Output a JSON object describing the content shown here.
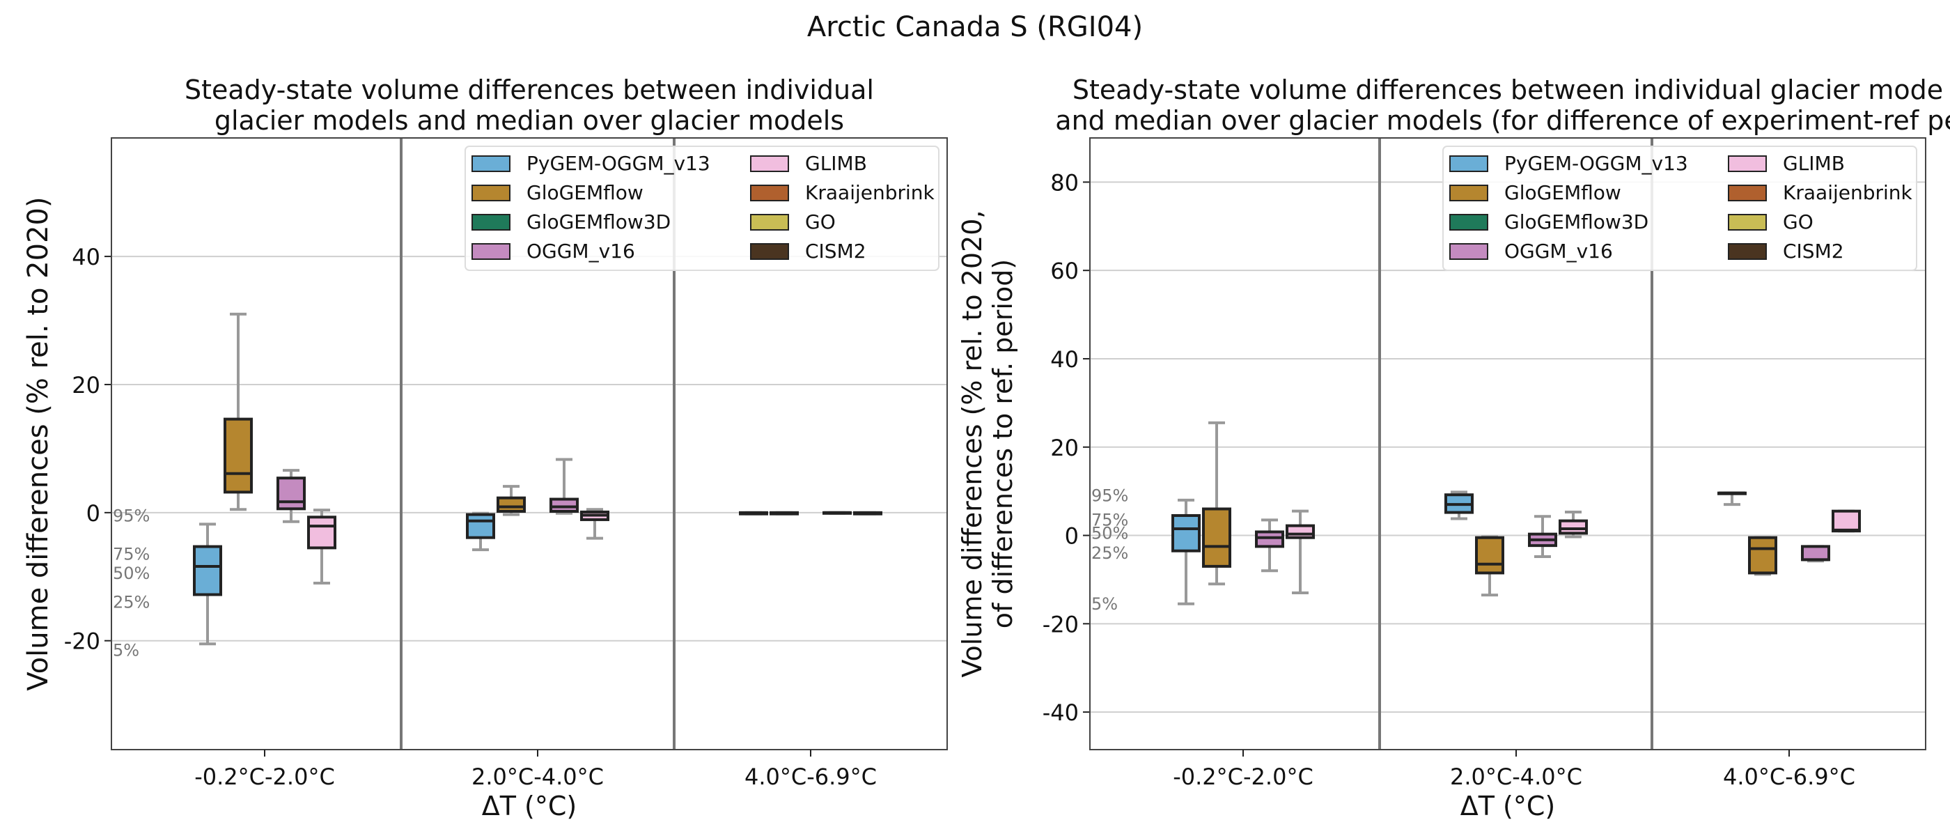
{
  "suptitle": "Arctic Canada S (RGI04)",
  "legend": [
    {
      "name": "PyGEM-OGGM_v13",
      "color": "#6aaed6"
    },
    {
      "name": "GloGEMflow",
      "color": "#b5862f"
    },
    {
      "name": "GloGEMflow3D",
      "color": "#1f7a5a"
    },
    {
      "name": "OGGM_v16",
      "color": "#c48bc0"
    },
    {
      "name": "GLIMB",
      "color": "#f1bedf"
    },
    {
      "name": "Kraaijenbrink",
      "color": "#b0602e"
    },
    {
      "name": "GO",
      "color": "#c9bd55"
    },
    {
      "name": "CISM2",
      "color": "#4a3420"
    }
  ],
  "chart_data": [
    {
      "type": "box",
      "title_line1": "Steady-state volume differences between individual",
      "title_line2": "glacier models and median over glacier models",
      "xlabel": "ΔT (°C)",
      "ylabel_line1": "Volume differences (% rel. to 2020)",
      "ylabel_line2": "",
      "ylim": [
        -37,
        58.5
      ],
      "yticks": [
        -20,
        0,
        20,
        40
      ],
      "grid": true,
      "legend_position": "top-right",
      "categories": [
        "-0.2°C-2.0°C",
        "2.0°C-4.0°C",
        "4.0°C-6.9°C"
      ],
      "percentile_labels": [
        {
          "text": "95%",
          "y": -0.5
        },
        {
          "text": "75%",
          "y": -6.5
        },
        {
          "text": "50%",
          "y": -9.5
        },
        {
          "text": "25%",
          "y": -14
        },
        {
          "text": "5%",
          "y": -21.5
        }
      ],
      "boxes": [
        {
          "group": 0,
          "model": "PyGEM-OGGM_v13",
          "p5": -20.5,
          "q1": -12.8,
          "median": -8.4,
          "q3": -5.3,
          "p95": -1.8
        },
        {
          "group": 0,
          "model": "GloGEMflow",
          "p5": 0.5,
          "q1": 3.2,
          "median": 6.1,
          "q3": 14.6,
          "p95": 31.0
        },
        {
          "group": 0,
          "model": "OGGM_v16",
          "p5": -1.4,
          "q1": 0.6,
          "median": 1.7,
          "q3": 5.4,
          "p95": 6.6
        },
        {
          "group": 0,
          "model": "GLIMB",
          "p5": -11.0,
          "q1": -5.5,
          "median": -2.1,
          "q3": -0.7,
          "p95": 0.4
        },
        {
          "group": 1,
          "model": "PyGEM-OGGM_v13",
          "p5": -5.8,
          "q1": -3.9,
          "median": -1.3,
          "q3": -0.3,
          "p95": -0.1
        },
        {
          "group": 1,
          "model": "GloGEMflow",
          "p5": -0.3,
          "q1": 0.2,
          "median": 0.9,
          "q3": 2.3,
          "p95": 4.1
        },
        {
          "group": 1,
          "model": "OGGM_v16",
          "p5": -0.1,
          "q1": 0.2,
          "median": 0.9,
          "q3": 2.1,
          "p95": 8.3
        },
        {
          "group": 1,
          "model": "GLIMB",
          "p5": -4.0,
          "q1": -1.1,
          "median": -0.4,
          "q3": 0.1,
          "p95": 0.5
        },
        {
          "group": 2,
          "model": "PyGEM-OGGM_v13",
          "p5": -0.2,
          "q1": -0.2,
          "median": -0.1,
          "q3": 0.0,
          "p95": 0.0
        },
        {
          "group": 2,
          "model": "GloGEMflow",
          "p5": -0.2,
          "q1": -0.2,
          "median": -0.1,
          "q3": 0.0,
          "p95": 0.0
        },
        {
          "group": 2,
          "model": "OGGM_v16",
          "p5": -0.1,
          "q1": -0.1,
          "median": 0.0,
          "q3": 0.0,
          "p95": 0.0
        },
        {
          "group": 2,
          "model": "GLIMB",
          "p5": -0.2,
          "q1": -0.2,
          "median": -0.1,
          "q3": 0.0,
          "p95": 0.0
        }
      ]
    },
    {
      "type": "box",
      "title_line1": "Steady-state volume differences between individual glacier mode",
      "title_line2": "and median over glacier models (for difference of experiment-ref pe",
      "xlabel": "ΔT (°C)",
      "ylabel_line1": "Volume differences (% rel. to 2020,",
      "ylabel_line2": "of differences to ref. period)",
      "ylim": [
        -48.5,
        90
      ],
      "yticks": [
        -40,
        -20,
        0,
        20,
        40,
        60,
        80
      ],
      "grid": true,
      "legend_position": "top-right",
      "categories": [
        "-0.2°C-2.0°C",
        "2.0°C-4.0°C",
        "4.0°C-6.9°C"
      ],
      "percentile_labels": [
        {
          "text": "95%",
          "y": 9
        },
        {
          "text": "75%",
          "y": 3.5
        },
        {
          "text": "50%",
          "y": 0.5
        },
        {
          "text": "25%",
          "y": -4
        },
        {
          "text": "5%",
          "y": -15.5
        }
      ],
      "boxes": [
        {
          "group": 0,
          "model": "PyGEM-OGGM_v13",
          "p5": -15.5,
          "q1": -3.5,
          "median": 1.5,
          "q3": 4.5,
          "p95": 8.0
        },
        {
          "group": 0,
          "model": "GloGEMflow",
          "p5": -11.0,
          "q1": -7.0,
          "median": -2.5,
          "q3": 6.0,
          "p95": 25.5
        },
        {
          "group": 0,
          "model": "OGGM_v16",
          "p5": -8.0,
          "q1": -2.5,
          "median": -0.5,
          "q3": 0.8,
          "p95": 3.5
        },
        {
          "group": 0,
          "model": "GLIMB",
          "p5": -13.0,
          "q1": -0.5,
          "median": 0.3,
          "q3": 2.2,
          "p95": 5.5
        },
        {
          "group": 1,
          "model": "PyGEM-OGGM_v13",
          "p5": 3.8,
          "q1": 5.2,
          "median": 7.0,
          "q3": 9.2,
          "p95": 9.8
        },
        {
          "group": 1,
          "model": "GloGEMflow",
          "p5": -13.5,
          "q1": -8.5,
          "median": -6.5,
          "q3": -0.5,
          "p95": -0.3
        },
        {
          "group": 1,
          "model": "OGGM_v16",
          "p5": -4.8,
          "q1": -2.3,
          "median": -1.0,
          "q3": 0.3,
          "p95": 4.3
        },
        {
          "group": 1,
          "model": "GLIMB",
          "p5": -0.3,
          "q1": 0.5,
          "median": 1.5,
          "q3": 3.3,
          "p95": 5.3
        },
        {
          "group": 2,
          "model": "PyGEM-OGGM_v13",
          "p5": 7.0,
          "q1": 9.6,
          "median": 9.6,
          "q3": 9.6,
          "p95": 9.6
        },
        {
          "group": 2,
          "model": "GloGEMflow",
          "p5": -8.8,
          "q1": -8.5,
          "median": -3.0,
          "q3": -0.5,
          "p95": -0.5
        },
        {
          "group": 2,
          "model": "OGGM_v16",
          "p5": -5.8,
          "q1": -5.5,
          "median": -5.5,
          "q3": -2.5,
          "p95": -2.5
        },
        {
          "group": 2,
          "model": "GLIMB",
          "p5": 1.0,
          "q1": 1.0,
          "median": 1.2,
          "q3": 5.5,
          "p95": 5.5
        }
      ]
    }
  ]
}
